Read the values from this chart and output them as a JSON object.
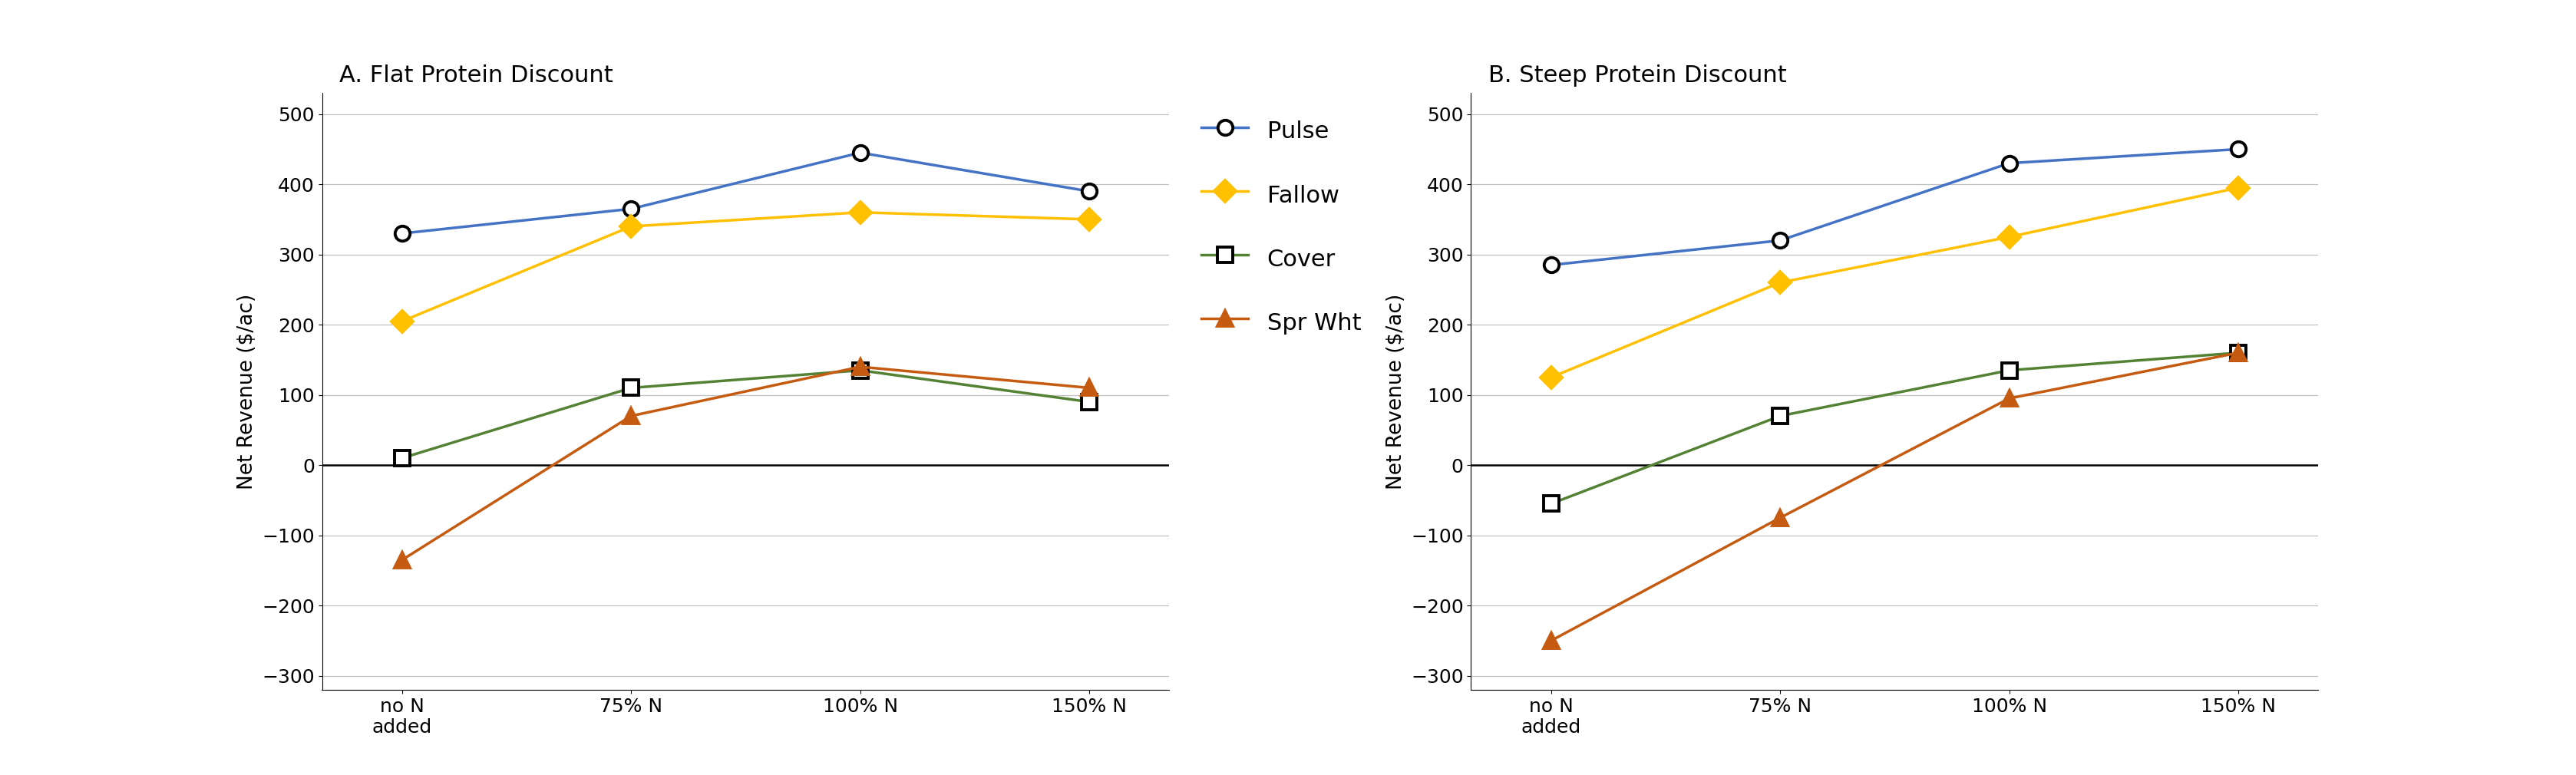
{
  "panel_A": {
    "title": "A. Flat Protein Discount",
    "series": {
      "Pulse": [
        330,
        365,
        445,
        390
      ],
      "Fallow": [
        205,
        340,
        360,
        350
      ],
      "Cover": [
        10,
        110,
        135,
        90
      ],
      "Spr Wht": [
        -135,
        70,
        140,
        110
      ]
    }
  },
  "panel_B": {
    "title": "B. Steep Protein Discount",
    "series": {
      "Pulse": [
        285,
        320,
        430,
        450
      ],
      "Fallow": [
        125,
        260,
        325,
        395
      ],
      "Cover": [
        -55,
        70,
        135,
        160
      ],
      "Spr Wht": [
        -250,
        -75,
        95,
        160
      ]
    }
  },
  "x_labels": [
    "no N\nadded",
    "75% N",
    "100% N",
    "150% N"
  ],
  "x_values": [
    0,
    1,
    2,
    3
  ],
  "ylabel": "Net Revenue ($/ac)",
  "ylim": [
    -320,
    530
  ],
  "yticks": [
    -300,
    -200,
    -100,
    0,
    100,
    200,
    300,
    400,
    500
  ],
  "colors": {
    "Pulse": "#4472C4",
    "Fallow": "#FFC000",
    "Cover": "#548235",
    "Spr Wht": "#C55A11"
  },
  "markers": {
    "Pulse": "o",
    "Fallow": "D",
    "Cover": "s",
    "Spr Wht": "^"
  },
  "markerfacecolors": {
    "Pulse": "white",
    "Fallow": "#FFC000",
    "Cover": "white",
    "Spr Wht": "#C55A11"
  },
  "markeredgecolors": {
    "Pulse": "black",
    "Fallow": "#FFC000",
    "Cover": "black",
    "Spr Wht": "#C55A11"
  },
  "linewidth": 2.5,
  "markersize": 14,
  "markeredgewidth": 2.8,
  "background_color": "#FFFFFF",
  "grid_color": "#C0C0C0",
  "zero_line_color": "#000000",
  "title_fontsize": 22,
  "label_fontsize": 19,
  "tick_fontsize": 18,
  "legend_fontsize": 22,
  "series_order": [
    "Pulse",
    "Fallow",
    "Cover",
    "Spr Wht"
  ]
}
